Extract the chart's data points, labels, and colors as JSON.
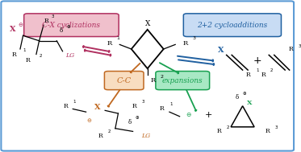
{
  "bg_color": "#ffffff",
  "border_color": "#5b9bd5",
  "title_cx_text": "C-X cyclizations",
  "title_cx_color": "#b03060",
  "title_cx_bg": "#f0c0cc",
  "title_22_text": "2+2 cycloadditions",
  "title_22_color": "#2060a0",
  "title_22_bg": "#c8dcf4",
  "title_cc_text": "C-C",
  "title_cc_color": "#c06820",
  "title_cc_bg": "#f8ddc0",
  "title_exp_text": "expansions",
  "title_exp_color": "#18a050",
  "title_exp_bg": "#a8e8c4",
  "arrow_cx_color": "#b03060",
  "arrow_22_color": "#2060a0",
  "arrow_cc_color": "#c06820",
  "arrow_exp_color": "#18a050"
}
